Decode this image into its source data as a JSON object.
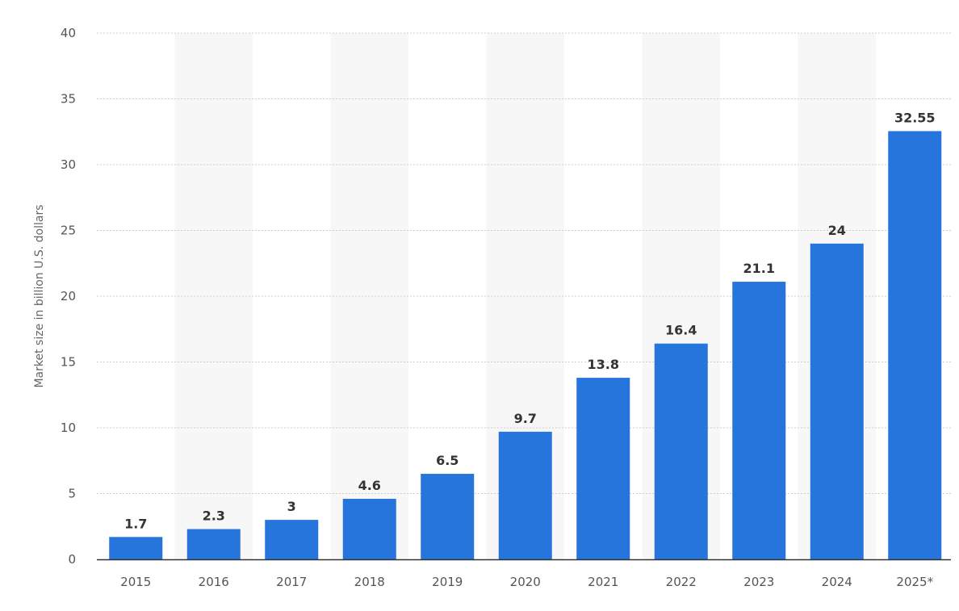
{
  "chart_data": {
    "type": "bar",
    "categories": [
      "2015",
      "2016",
      "2017",
      "2018",
      "2019",
      "2020",
      "2021",
      "2022",
      "2023",
      "2024",
      "2025*"
    ],
    "values": [
      1.7,
      2.3,
      3,
      4.6,
      6.5,
      9.7,
      13.8,
      16.4,
      21.1,
      24,
      32.55
    ],
    "value_labels": [
      "1.7",
      "2.3",
      "3",
      "4.6",
      "6.5",
      "9.7",
      "13.8",
      "16.4",
      "21.1",
      "24",
      "32.55"
    ],
    "title": "",
    "xlabel": "",
    "ylabel": "Market size in billion U.S. dollars",
    "ylim": [
      0,
      40
    ],
    "yticks": [
      "0",
      "5",
      "10",
      "15",
      "20",
      "25",
      "30",
      "35",
      "40"
    ],
    "grid": true,
    "legend": "none"
  },
  "colors": {
    "bar": "#2575dc",
    "grid": "#cccccc",
    "band": "#f7f7f7",
    "axis": "#333333"
  }
}
